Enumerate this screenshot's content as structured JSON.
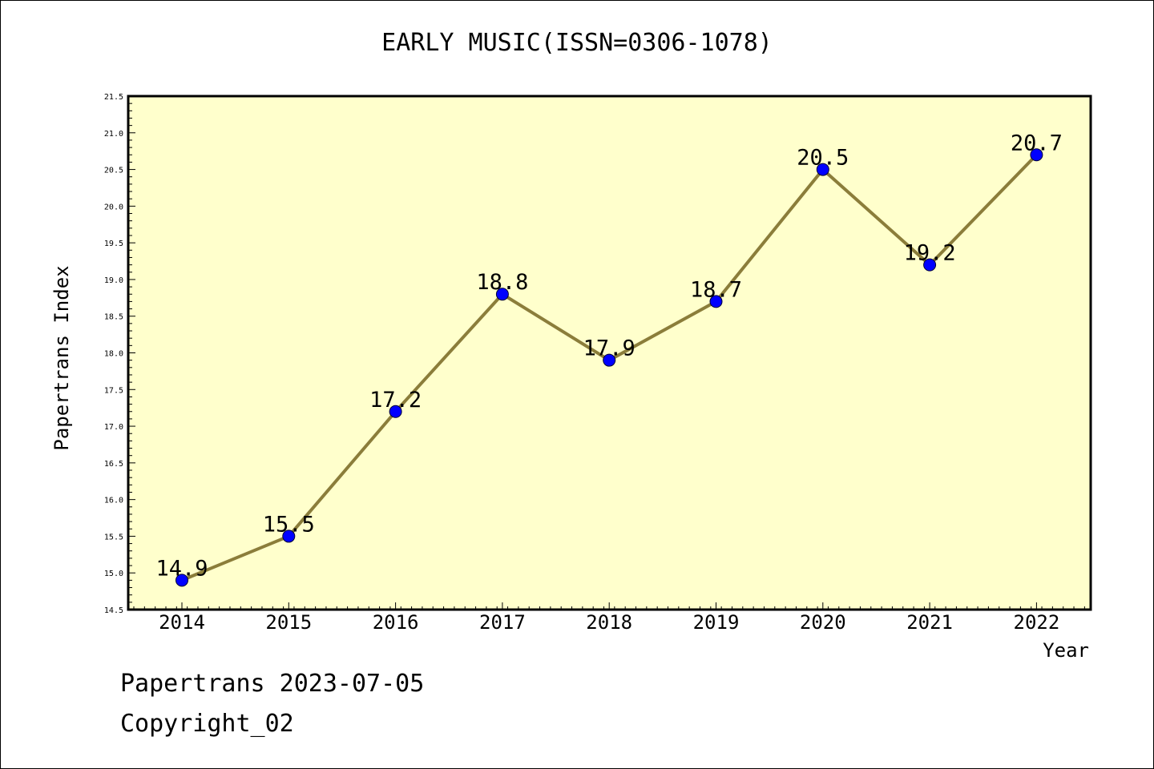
{
  "title": "EARLY MUSIC(ISSN=0306-1078)",
  "footer": {
    "line1": "Papertrans 2023-07-05",
    "line2": "Copyright_02"
  },
  "colors": {
    "plot_background": "#ffffcc",
    "line": "#8b7d3a",
    "marker": "#0000ff"
  },
  "chart_data": {
    "type": "line",
    "title": "EARLY MUSIC(ISSN=0306-1078)",
    "xlabel": "Year",
    "ylabel": "Papertrans Index",
    "categories": [
      "2014",
      "2015",
      "2016",
      "2017",
      "2018",
      "2019",
      "2020",
      "2021",
      "2022"
    ],
    "values": [
      14.9,
      15.5,
      17.2,
      18.8,
      17.9,
      18.7,
      20.5,
      19.2,
      20.7
    ],
    "data_labels": [
      "14.9",
      "15.5",
      "17.2",
      "18.8",
      "17.9",
      "18.7",
      "20.5",
      "19.2",
      "20.7"
    ],
    "ylim": [
      14.5,
      21.5
    ],
    "ytick_labels": [
      "14.5",
      "15.0",
      "15.5",
      "16.0",
      "16.5",
      "17.0",
      "17.5",
      "18.0",
      "18.5",
      "19.0",
      "19.5",
      "20.0",
      "20.5",
      "21.0",
      "21.5"
    ],
    "grid": false,
    "legend": "none"
  }
}
